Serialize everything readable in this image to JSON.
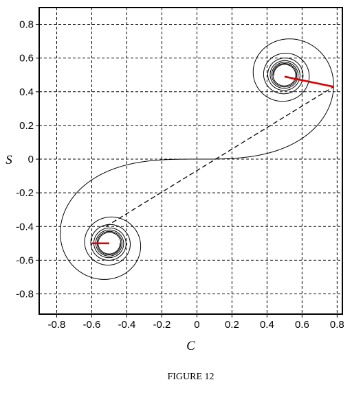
{
  "chart_data": {
    "type": "line",
    "title": "",
    "xlabel": "C",
    "ylabel": "S",
    "xlim": [
      -0.9,
      0.83
    ],
    "ylim": [
      -0.92,
      0.9
    ],
    "grid": true,
    "grid_style": "dashed",
    "x_ticks": [
      "-0.8",
      "-0.6",
      "-0.4",
      "-0.2",
      "0",
      "0.2",
      "0.4",
      "0.6",
      "0.8"
    ],
    "x_tick_values": [
      -0.8,
      -0.6,
      -0.4,
      -0.2,
      0,
      0.2,
      0.4,
      0.6,
      0.8
    ],
    "y_ticks": [
      "0.8",
      "0.6",
      "0.4",
      "0.2",
      "0",
      "-0.2",
      "-0.4",
      "-0.6",
      "-0.8"
    ],
    "y_tick_values": [
      0.8,
      0.6,
      0.4,
      0.2,
      0,
      -0.2,
      -0.4,
      -0.6,
      -0.8
    ],
    "spiral": {
      "curve": "Euler spiral (Fresnel integrals C(t), S(t))",
      "t_range": [
        -5.2,
        5.2
      ],
      "color": "#000000",
      "asymptotic_points": [
        [
          0.5,
          0.5
        ],
        [
          -0.5,
          -0.5
        ]
      ]
    },
    "series": [
      {
        "style": "dashed",
        "color": "#000000",
        "x": [
          -0.52,
          0.78
        ],
        "y": [
          -0.4,
          0.43
        ]
      },
      {
        "style": "solid-thick",
        "color": "#dd0000",
        "x": [
          0.5,
          0.78
        ],
        "y": [
          0.49,
          0.43
        ]
      },
      {
        "style": "solid-thick",
        "color": "#dd0000",
        "x": [
          -0.6,
          -0.5
        ],
        "y": [
          -0.5,
          -0.5
        ]
      }
    ],
    "caption": "FIGURE 12"
  }
}
